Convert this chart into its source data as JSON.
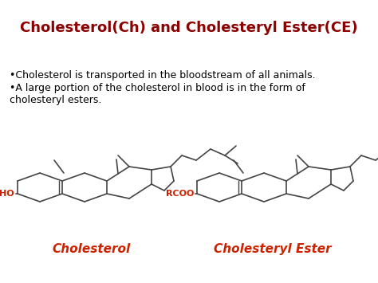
{
  "title": "Cholesterol(Ch) and Cholesteryl Ester(CE)",
  "title_color": "#8B0000",
  "title_fontsize": 13,
  "bullet1": "•Cholesterol is transported in the bloodstream of all animals.",
  "bullet2": "•A large portion of the cholesterol in blood is in the form of\ncholesteryl esters.",
  "bullet_fontsize": 9,
  "bullet_color": "#000000",
  "label1": "Cholesterol",
  "label2": "Cholesteryl Ester",
  "label_color": "#CC2200",
  "label_fontsize": 11,
  "ho_label": "HO",
  "rcoo_label": "RCOO",
  "group_label_color": "#CC2200",
  "background_color": "#FFFFFF",
  "line_color": "#444444",
  "line_width": 1.2,
  "fig_w": 4.74,
  "fig_h": 3.55,
  "dpi": 100
}
